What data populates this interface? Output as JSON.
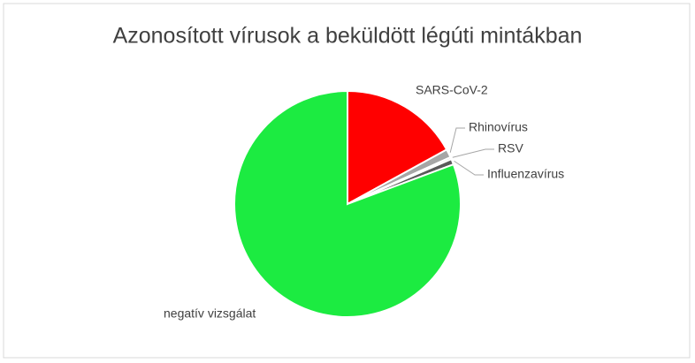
{
  "chart_data": {
    "type": "pie",
    "title": "Azonosított vírusok a beküldött légúti mintákban",
    "categories": [
      "SARS-CoV-2",
      "Rhinovírus",
      "RSV",
      "Influenzavírus",
      "negatív vizsgálat"
    ],
    "values": [
      17,
      1.2,
      0.3,
      0.8,
      80.7
    ],
    "colors": [
      "#ff0000",
      "#a6a6a6",
      "#d9d9d9",
      "#595959",
      "#1ceb41"
    ]
  }
}
